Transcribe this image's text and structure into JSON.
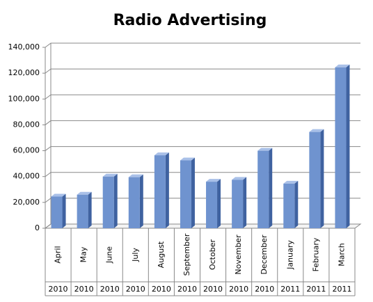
{
  "chart_data": {
    "type": "bar",
    "title": "Radio Advertising",
    "categories": [
      "April",
      "May",
      "June",
      "July",
      "August",
      "September",
      "October",
      "November",
      "December",
      "January",
      "February",
      "March"
    ],
    "year_labels": [
      "2010",
      "2010",
      "2010",
      "2010",
      "2010",
      "2010",
      "2010",
      "2010",
      "2010",
      "2011",
      "2011",
      "2011"
    ],
    "values": [
      24500,
      26000,
      40000,
      39500,
      56500,
      52500,
      36000,
      37500,
      60000,
      34500,
      74500,
      124500
    ],
    "color": "#6f93cf",
    "ylim": [
      0,
      140000
    ],
    "yticks": [
      0,
      {
        "value": 20000,
        "label": "20,000"
      },
      {
        "value": 40000,
        "label": "40,000"
      },
      {
        "value": 60000,
        "label": "60,000"
      },
      {
        "value": 80000,
        "label": "80,000"
      },
      {
        "value": 100000,
        "label": "100,000"
      },
      {
        "value": 120000,
        "label": "120,000"
      },
      {
        "value": 140000,
        "label": "140,000"
      }
    ],
    "grid": true
  }
}
